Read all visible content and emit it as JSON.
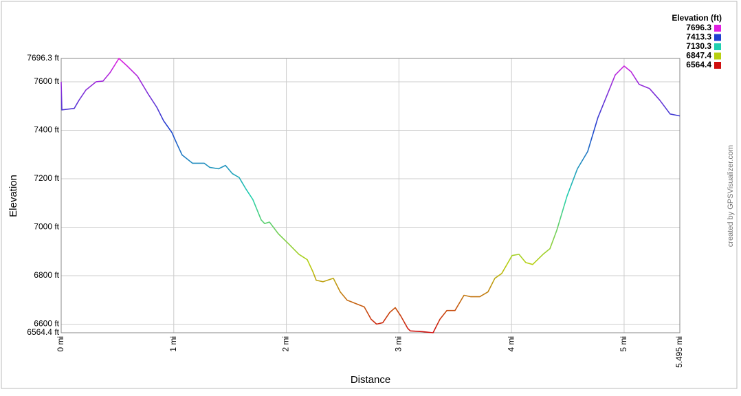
{
  "chart_data": {
    "type": "line",
    "xlabel": "Distance",
    "ylabel": "Elevation",
    "credit": "created by GPSVisualizer.com",
    "legend": {
      "title": "Elevation (ft)",
      "items": [
        {
          "value": 7696.3,
          "color": "#e020e0"
        },
        {
          "value": 7413.3,
          "color": "#2040d0"
        },
        {
          "value": 7130.3,
          "color": "#20d0b0"
        },
        {
          "value": 6847.4,
          "color": "#b8d010"
        },
        {
          "value": 6564.4,
          "color": "#d01010"
        }
      ]
    },
    "grid": true,
    "xlim": [
      0,
      5.495
    ],
    "ylim": [
      6564.4,
      7696.3
    ],
    "xticks": [
      {
        "value": 0,
        "label": "0 mi"
      },
      {
        "value": 1,
        "label": "1 mi"
      },
      {
        "value": 2,
        "label": "2 mi"
      },
      {
        "value": 3,
        "label": "3 mi"
      },
      {
        "value": 4,
        "label": "4 mi"
      },
      {
        "value": 5,
        "label": "5 mi"
      },
      {
        "value": 5.495,
        "label": "5.495 mi"
      }
    ],
    "yticks": [
      {
        "value": 6564.4,
        "label": "6564.4 ft"
      },
      {
        "value": 6600,
        "label": "6600 ft"
      },
      {
        "value": 6800,
        "label": "6800 ft"
      },
      {
        "value": 7000,
        "label": "7000 ft"
      },
      {
        "value": 7200,
        "label": "7200 ft"
      },
      {
        "value": 7400,
        "label": "7400 ft"
      },
      {
        "value": 7600,
        "label": "7600 ft"
      },
      {
        "value": 7696.3,
        "label": "7696.3 ft"
      }
    ],
    "x": [
      0,
      0.006,
      0.116,
      0.159,
      0.22,
      0.311,
      0.372,
      0.433,
      0.513,
      0.586,
      0.678,
      0.769,
      0.849,
      0.91,
      0.983,
      1.032,
      1.074,
      1.166,
      1.27,
      1.319,
      1.398,
      1.459,
      1.52,
      1.581,
      1.642,
      1.703,
      1.777,
      1.807,
      1.85,
      1.929,
      2.021,
      2.112,
      2.186,
      2.234,
      2.265,
      2.326,
      2.418,
      2.479,
      2.54,
      2.631,
      2.692,
      2.753,
      2.802,
      2.857,
      2.918,
      2.967,
      3.016,
      3.077,
      3.101,
      3.211,
      3.303,
      3.364,
      3.425,
      3.498,
      3.578,
      3.639,
      3.718,
      3.791,
      3.852,
      3.913,
      4.005,
      4.066,
      4.127,
      4.188,
      4.28,
      4.341,
      4.402,
      4.493,
      4.585,
      4.676,
      4.768,
      4.86,
      4.921,
      5.0,
      5.061,
      5.134,
      5.226,
      5.317,
      5.409,
      5.495
    ],
    "values": [
      7600,
      7484,
      7490,
      7524,
      7566,
      7600,
      7603,
      7637,
      7696.3,
      7665,
      7623,
      7552,
      7495,
      7439,
      7391,
      7340,
      7298,
      7264,
      7264,
      7247,
      7241,
      7255,
      7221,
      7205,
      7157,
      7114,
      7030,
      7015,
      7021,
      6973,
      6931,
      6888,
      6866,
      6818,
      6781,
      6775,
      6789,
      6733,
      6699,
      6682,
      6671,
      6620,
      6600,
      6606,
      6648,
      6668,
      6634,
      6583,
      6572,
      6569,
      6564.4,
      6620,
      6656,
      6656,
      6719,
      6713,
      6713,
      6733,
      6789,
      6809,
      6883,
      6888,
      6854,
      6846,
      6888,
      6911,
      6987,
      7128,
      7241,
      7312,
      7453,
      7558,
      7628,
      7665,
      7642,
      7589,
      7572,
      7524,
      7467,
      7459
    ]
  }
}
